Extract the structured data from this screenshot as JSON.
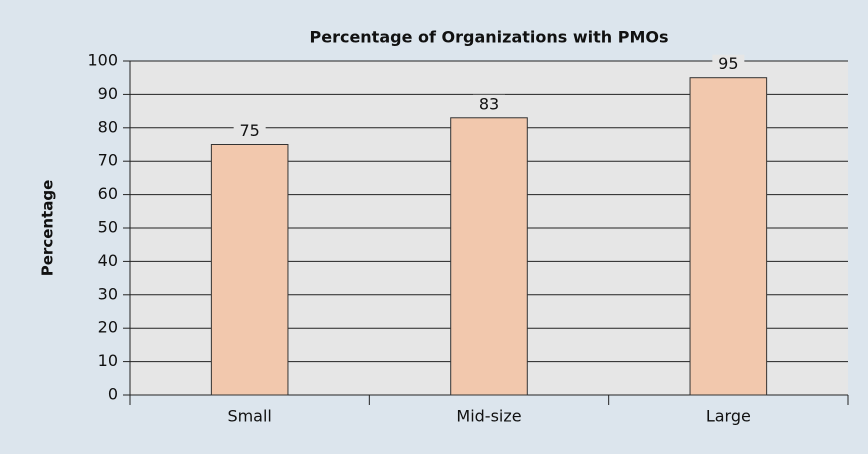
{
  "chart_data": {
    "type": "bar",
    "title": "Percentage of Organizations with PMOs",
    "y_label": "Percentage",
    "categories": [
      "Small",
      "Mid-size",
      "Large"
    ],
    "values": [
      75,
      83,
      95
    ],
    "color": "#f2c8ad",
    "ylim": [
      0,
      100
    ],
    "yticks": [
      0,
      10,
      20,
      30,
      40,
      50,
      60,
      70,
      80,
      90,
      100
    ],
    "grid": true
  }
}
